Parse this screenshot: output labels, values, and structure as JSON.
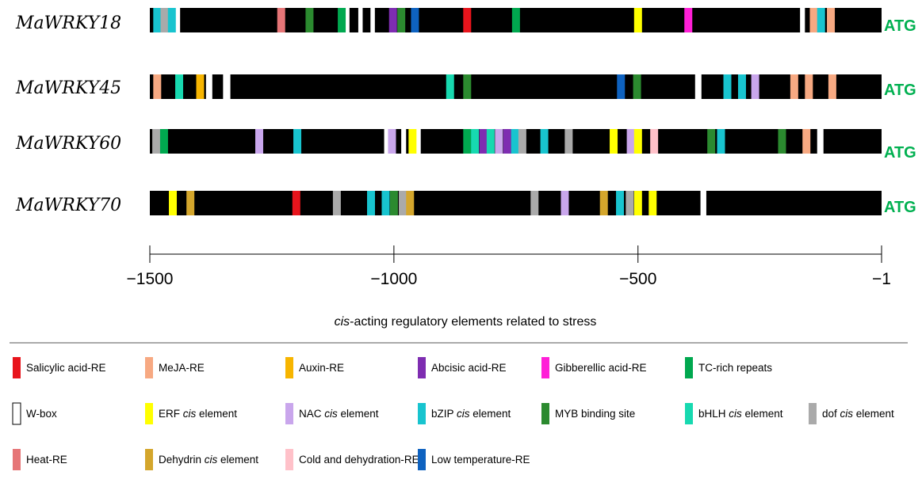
{
  "axis": {
    "min": -1500,
    "max": -1,
    "ticks": [
      -1500,
      -1000,
      -500,
      -1
    ],
    "tick_labels": [
      "−1500",
      "−1000",
      "−500",
      "−1"
    ],
    "title_parts": [
      {
        "text": "cis",
        "italic": true
      },
      {
        "text": "-acting regulatory elements related to stress",
        "italic": false
      }
    ]
  },
  "atg_label": "ATG",
  "genes": [
    {
      "name": "MaWRKY18",
      "gaps": [
        [
          -1453,
          -1438
        ],
        [
          -1100,
          -1091
        ],
        [
          -1073,
          -1064
        ],
        [
          -1048,
          -1039
        ],
        [
          -168,
          -158
        ]
      ],
      "elements": [
        {
          "pos": -1493,
          "type": "bZIP"
        },
        {
          "pos": -1478,
          "type": "dof"
        },
        {
          "pos": -1463,
          "type": "bZIP"
        },
        {
          "pos": -1239,
          "type": "Heat"
        },
        {
          "pos": -1181,
          "type": "MYB"
        },
        {
          "pos": -1115,
          "type": "TC-rich"
        },
        {
          "pos": -1010,
          "type": "Abcisic"
        },
        {
          "pos": -993,
          "type": "MYB"
        },
        {
          "pos": -965,
          "type": "LowTemp"
        },
        {
          "pos": -858,
          "type": "Salicylic"
        },
        {
          "pos": -758,
          "type": "TC-rich"
        },
        {
          "pos": -508,
          "type": "ERF"
        },
        {
          "pos": -405,
          "type": "Gibberellic"
        },
        {
          "pos": -148,
          "type": "MeJA"
        },
        {
          "pos": -133,
          "type": "bZIP"
        },
        {
          "pos": -113,
          "type": "MeJA"
        }
      ]
    },
    {
      "name": "MaWRKY45",
      "gaps": [
        [
          -1350,
          -1335
        ],
        [
          -383,
          -370
        ]
      ],
      "elements": [
        {
          "pos": -1493,
          "type": "MeJA"
        },
        {
          "pos": -1448,
          "type": "bHLH"
        },
        {
          "pos": -1405,
          "type": "Auxin"
        },
        {
          "pos": -1385,
          "type": "gap"
        },
        {
          "pos": -893,
          "type": "bHLH"
        },
        {
          "pos": -858,
          "type": "MYB"
        },
        {
          "pos": -543,
          "type": "LowTemp"
        },
        {
          "pos": -510,
          "type": "MYB"
        },
        {
          "pos": -325,
          "type": "bZIP"
        },
        {
          "pos": -295,
          "type": "bZIP"
        },
        {
          "pos": -268,
          "type": "NAC"
        },
        {
          "pos": -188,
          "type": "MeJA"
        },
        {
          "pos": -158,
          "type": "MeJA"
        },
        {
          "pos": -110,
          "type": "MeJA"
        }
      ]
    },
    {
      "name": "MaWRKY60",
      "gaps": [
        [
          -1020,
          -1010
        ],
        [
          -985,
          -975
        ],
        [
          -955,
          -945
        ],
        [
          -473,
          -465
        ],
        [
          -133,
          -120
        ]
      ],
      "elements": [
        {
          "pos": -1495,
          "type": "dof"
        },
        {
          "pos": -1479,
          "type": "TC-rich"
        },
        {
          "pos": -1284,
          "type": "NAC"
        },
        {
          "pos": -1206,
          "type": "bZIP"
        },
        {
          "pos": -1012,
          "type": "NAC"
        },
        {
          "pos": -970,
          "type": "ERF"
        },
        {
          "pos": -858,
          "type": "TC-rich"
        },
        {
          "pos": -842,
          "type": "bHLH"
        },
        {
          "pos": -825,
          "type": "Abcisic"
        },
        {
          "pos": -810,
          "type": "bHLH"
        },
        {
          "pos": -793,
          "type": "NAC"
        },
        {
          "pos": -776,
          "type": "Abcisic"
        },
        {
          "pos": -760,
          "type": "bZIP"
        },
        {
          "pos": -745,
          "type": "dof"
        },
        {
          "pos": -700,
          "type": "bZIP"
        },
        {
          "pos": -650,
          "type": "dof"
        },
        {
          "pos": -558,
          "type": "ERF"
        },
        {
          "pos": -523,
          "type": "NAC"
        },
        {
          "pos": -508,
          "type": "ERF"
        },
        {
          "pos": -475,
          "type": "ColdDehyd"
        },
        {
          "pos": -358,
          "type": "MYB"
        },
        {
          "pos": -338,
          "type": "bZIP"
        },
        {
          "pos": -213,
          "type": "MYB"
        },
        {
          "pos": -163,
          "type": "MeJA"
        }
      ]
    },
    {
      "name": "MaWRKY70",
      "gaps": [
        [
          -372,
          -360
        ]
      ],
      "elements": [
        {
          "pos": -1461,
          "type": "ERF"
        },
        {
          "pos": -1425,
          "type": "Dehydrin"
        },
        {
          "pos": -1208,
          "type": "Salicylic"
        },
        {
          "pos": -1125,
          "type": "dof"
        },
        {
          "pos": -1055,
          "type": "bZIP"
        },
        {
          "pos": -1025,
          "type": "bZIP"
        },
        {
          "pos": -1008,
          "type": "MYB"
        },
        {
          "pos": -990,
          "type": "dof"
        },
        {
          "pos": -975,
          "type": "Dehydrin"
        },
        {
          "pos": -720,
          "type": "dof"
        },
        {
          "pos": -658,
          "type": "NAC"
        },
        {
          "pos": -578,
          "type": "Dehydrin"
        },
        {
          "pos": -545,
          "type": "bZIP"
        },
        {
          "pos": -525,
          "type": "dof"
        },
        {
          "pos": -508,
          "type": "ERF"
        },
        {
          "pos": -478,
          "type": "ERF"
        }
      ]
    }
  ],
  "legend": [
    {
      "key": "Salicylic",
      "parts": [
        {
          "text": "Salicylic acid-RE"
        }
      ],
      "color": "#e8141c"
    },
    {
      "key": "MeJA",
      "parts": [
        {
          "text": "MeJA-RE"
        }
      ],
      "color": "#f7a982"
    },
    {
      "key": "Auxin",
      "parts": [
        {
          "text": "Auxin-RE"
        }
      ],
      "color": "#f7b500"
    },
    {
      "key": "Abcisic",
      "parts": [
        {
          "text": "Abcisic acid-RE"
        }
      ],
      "color": "#7e2db1"
    },
    {
      "key": "Gibberellic",
      "parts": [
        {
          "text": "Gibberellic acid-RE"
        }
      ],
      "color": "#ff1fd7"
    },
    {
      "key": "TC-rich",
      "parts": [
        {
          "text": "TC-rich repeats"
        }
      ],
      "color": "#00a84f"
    },
    {
      "key": "W-box",
      "parts": [
        {
          "text": "W-box"
        }
      ],
      "color": "#ffffff",
      "outline": true
    },
    {
      "key": "ERF",
      "parts": [
        {
          "text": "ERF "
        },
        {
          "text": "cis",
          "italic": true
        },
        {
          "text": " element"
        }
      ],
      "color": "#ffff00"
    },
    {
      "key": "NAC",
      "parts": [
        {
          "text": "NAC "
        },
        {
          "text": "cis",
          "italic": true
        },
        {
          "text": " element"
        }
      ],
      "color": "#c9a6ec"
    },
    {
      "key": "bZIP",
      "parts": [
        {
          "text": "bZIP "
        },
        {
          "text": "cis",
          "italic": true
        },
        {
          "text": " element"
        }
      ],
      "color": "#18c4cf"
    },
    {
      "key": "MYB",
      "parts": [
        {
          "text": "MYB binding site"
        }
      ],
      "color": "#2b8a2f"
    },
    {
      "key": "bHLH",
      "parts": [
        {
          "text": "bHLH "
        },
        {
          "text": "cis",
          "italic": true
        },
        {
          "text": " element"
        }
      ],
      "color": "#17d9b0"
    },
    {
      "key": "dof",
      "parts": [
        {
          "text": "dof "
        },
        {
          "text": "cis",
          "italic": true
        },
        {
          "text": " element"
        }
      ],
      "color": "#aaaaaa"
    },
    {
      "key": "Heat",
      "parts": [
        {
          "text": "Heat-RE"
        }
      ],
      "color": "#e67577"
    },
    {
      "key": "Dehydrin",
      "parts": [
        {
          "text": "Dehydrin "
        },
        {
          "text": "cis",
          "italic": true
        },
        {
          "text": " element"
        }
      ],
      "color": "#d4a62c"
    },
    {
      "key": "ColdDehyd",
      "parts": [
        {
          "text": "Cold and dehydration-RE"
        }
      ],
      "color": "#ffc1c9"
    },
    {
      "key": "LowTemp",
      "parts": [
        {
          "text": "Low temperature-RE"
        }
      ],
      "color": "#0e62c0"
    }
  ]
}
